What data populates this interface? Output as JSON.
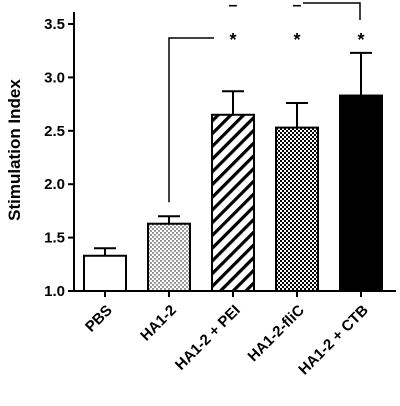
{
  "chart_data": {
    "type": "bar",
    "title": "",
    "xlabel": "",
    "ylabel": "Stimulation Index",
    "ylim": [
      1.0,
      3.5
    ],
    "yticks": [
      "1.0",
      "1.5",
      "2.0",
      "2.5",
      "3.0",
      "3.5"
    ],
    "grid": false,
    "categories": [
      "PBS",
      "HA1-2",
      "HA1-2 + PEI",
      "HA1-2-fliC",
      "HA1-2 + CTB"
    ],
    "values": [
      1.33,
      1.63,
      2.65,
      2.53,
      2.83
    ],
    "error_upper": [
      1.4,
      1.7,
      2.87,
      2.76,
      3.23
    ],
    "fill_patterns": [
      "empty",
      "dots",
      "diagonal-stripes",
      "checker",
      "solid"
    ],
    "annotations": {
      "stars": [
        "",
        "",
        "*",
        "*",
        "*"
      ],
      "dashes": [
        "",
        "",
        "–",
        "–",
        ""
      ],
      "brackets": [
        {
          "from": "HA1-2",
          "to": "HA1-2 + PEI"
        },
        {
          "from": "HA1-2-fliC",
          "to": "HA1-2 + CTB"
        }
      ]
    },
    "colors": {
      "bar_edge": "#000000",
      "solid_fill": "#000000",
      "empty_fill": "#ffffff"
    }
  }
}
